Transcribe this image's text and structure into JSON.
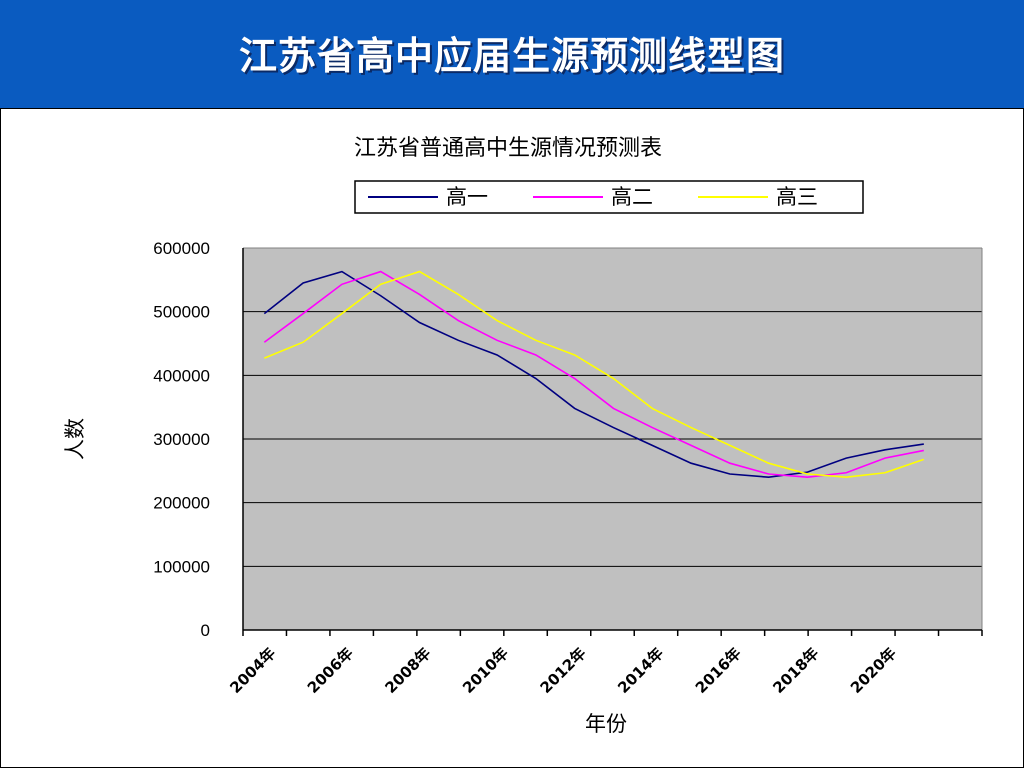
{
  "slide": {
    "title": "江苏省高中应届生源预测线型图"
  },
  "chart_data": {
    "type": "line",
    "title": "江苏省普通高中生源情况预测表",
    "xlabel": "年份",
    "ylabel": "人数",
    "ylim": [
      0,
      600000
    ],
    "yticks": [
      "0",
      "100000",
      "200000",
      "300000",
      "400000",
      "500000",
      "600000"
    ],
    "xtick_labels": [
      "2004年",
      "2006年",
      "2008年",
      "2010年",
      "2012年",
      "2014年",
      "2016年",
      "2018年",
      "2020年"
    ],
    "x": [
      2004,
      2005,
      2006,
      2007,
      2008,
      2009,
      2010,
      2011,
      2012,
      2013,
      2014,
      2015,
      2016,
      2017,
      2018,
      2019,
      2020,
      2021
    ],
    "grid": true,
    "legend_position": "top",
    "plot_background": "#c0c0c0",
    "series": [
      {
        "name": "高一",
        "color": "#000080",
        "values": [
          497000,
          545000,
          563000,
          525000,
          483000,
          455000,
          432000,
          395000,
          348000,
          318000,
          290000,
          262000,
          245000,
          240000,
          248000,
          270000,
          283000,
          292000
        ]
      },
      {
        "name": "高二",
        "color": "#ff00ff",
        "values": [
          452000,
          497000,
          543000,
          563000,
          527000,
          486000,
          455000,
          432000,
          395000,
          348000,
          318000,
          290000,
          262000,
          245000,
          240000,
          247000,
          270000,
          282000
        ]
      },
      {
        "name": "高三",
        "color": "#ffff00",
        "values": [
          427000,
          452000,
          497000,
          543000,
          563000,
          527000,
          486000,
          455000,
          432000,
          395000,
          348000,
          318000,
          290000,
          262000,
          245000,
          240000,
          247000,
          268000
        ]
      }
    ]
  }
}
